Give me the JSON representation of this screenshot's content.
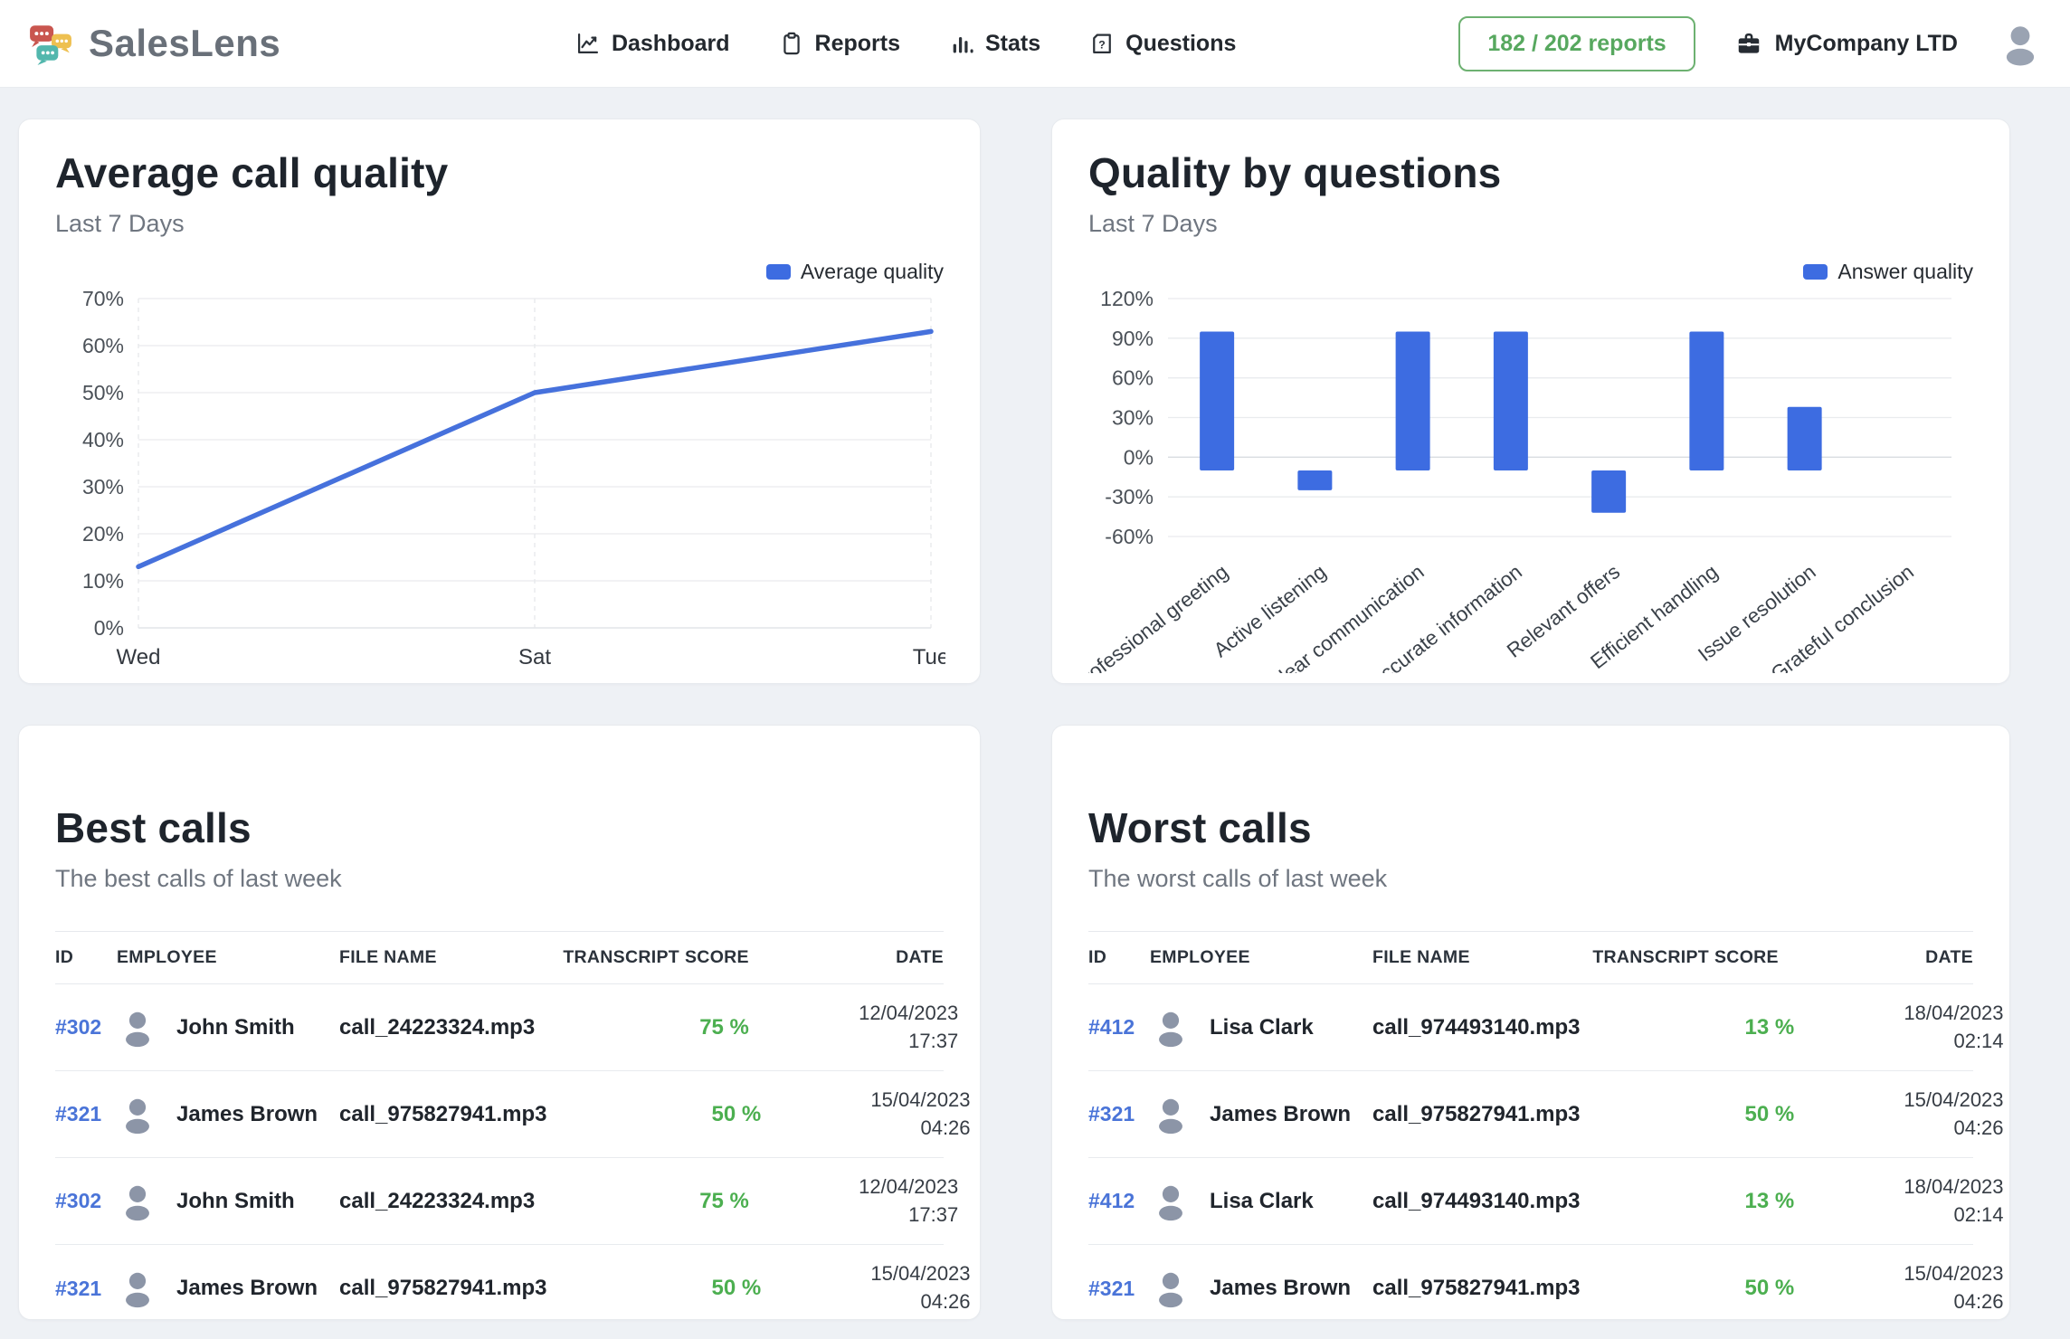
{
  "header": {
    "brand": "SalesLens",
    "nav": [
      {
        "label": "Dashboard",
        "icon": "line-chart-icon"
      },
      {
        "label": "Reports",
        "icon": "clipboard-icon"
      },
      {
        "label": "Stats",
        "icon": "bar-chart-icon"
      },
      {
        "label": "Questions",
        "icon": "question-folder-icon"
      }
    ],
    "reports_badge": "182 / 202 reports",
    "company": "MyCompany LTD"
  },
  "colors": {
    "accent_blue": "#3d6ce1",
    "line_blue": "#4671dc",
    "score_green": "#4caf50",
    "badge_green": "#57a85f",
    "id_link_blue": "#4a74d8",
    "page_bg": "#eef1f5"
  },
  "chart_data": [
    {
      "type": "line",
      "title": "Average call quality",
      "subtitle": "Last 7 Days",
      "legend": [
        "Average quality"
      ],
      "legend_position": "top-right",
      "x": [
        "Wed",
        "Sat",
        "Tue"
      ],
      "series": [
        {
          "name": "Average quality",
          "values": [
            13,
            50,
            63
          ]
        }
      ],
      "ylim": [
        0,
        70
      ],
      "yticks": [
        0,
        10,
        20,
        30,
        40,
        50,
        60,
        70
      ],
      "unit": "%",
      "grid": true
    },
    {
      "type": "bar",
      "title": "Quality by questions",
      "subtitle": "Last 7 Days",
      "legend": [
        "Answer quality"
      ],
      "legend_position": "top-right",
      "categories": [
        "Professional greeting",
        "Active listening",
        "Clear communication",
        "Accurate information",
        "Relevant offers",
        "Efficient handling",
        "Issue resolution",
        "Grateful conclusion"
      ],
      "series": [
        {
          "name": "Answer quality",
          "values": [
            95,
            -25,
            95,
            95,
            -42,
            95,
            38,
            0
          ]
        }
      ],
      "ylim": [
        -60,
        120
      ],
      "yticks": [
        120,
        90,
        60,
        30,
        0,
        -30,
        -60
      ],
      "unit": "%",
      "grid": true
    }
  ],
  "table_headers": [
    "ID",
    "EMPLOYEE",
    "FILE NAME",
    "TRANSCRIPT",
    "SCORE",
    "DATE"
  ],
  "best_calls": {
    "title": "Best calls",
    "subtitle": "The best calls of last week",
    "rows": [
      {
        "id": "#302",
        "employee": "John Smith",
        "file": "call_24223324.mp3",
        "transcript": "",
        "score": "75 %",
        "date": [
          "12/04/2023",
          "17:37"
        ]
      },
      {
        "id": "#321",
        "employee": "James Brown",
        "file": "call_975827941.mp3",
        "transcript": "",
        "score": "50 %",
        "date": [
          "15/04/2023",
          "04:26"
        ]
      },
      {
        "id": "#302",
        "employee": "John Smith",
        "file": "call_24223324.mp3",
        "transcript": "",
        "score": "75 %",
        "date": [
          "12/04/2023",
          "17:37"
        ]
      },
      {
        "id": "#321",
        "employee": "James Brown",
        "file": "call_975827941.mp3",
        "transcript": "",
        "score": "50 %",
        "date": [
          "15/04/2023",
          "04:26"
        ]
      }
    ]
  },
  "worst_calls": {
    "title": "Worst calls",
    "subtitle": "The worst calls of last week",
    "rows": [
      {
        "id": "#412",
        "employee": "Lisa Clark",
        "file": "call_974493140.mp3",
        "transcript": "",
        "score": "13 %",
        "date": [
          "18/04/2023 02:14"
        ]
      },
      {
        "id": "#321",
        "employee": "James Brown",
        "file": "call_975827941.mp3",
        "transcript": "",
        "score": "50 %",
        "date": [
          "15/04/2023 04:26"
        ]
      },
      {
        "id": "#412",
        "employee": "Lisa Clark",
        "file": "call_974493140.mp3",
        "transcript": "",
        "score": "13 %",
        "date": [
          "18/04/2023 02:14"
        ]
      },
      {
        "id": "#321",
        "employee": "James Brown",
        "file": "call_975827941.mp3",
        "transcript": "",
        "score": "50 %",
        "date": [
          "15/04/2023 04:26"
        ]
      }
    ]
  }
}
